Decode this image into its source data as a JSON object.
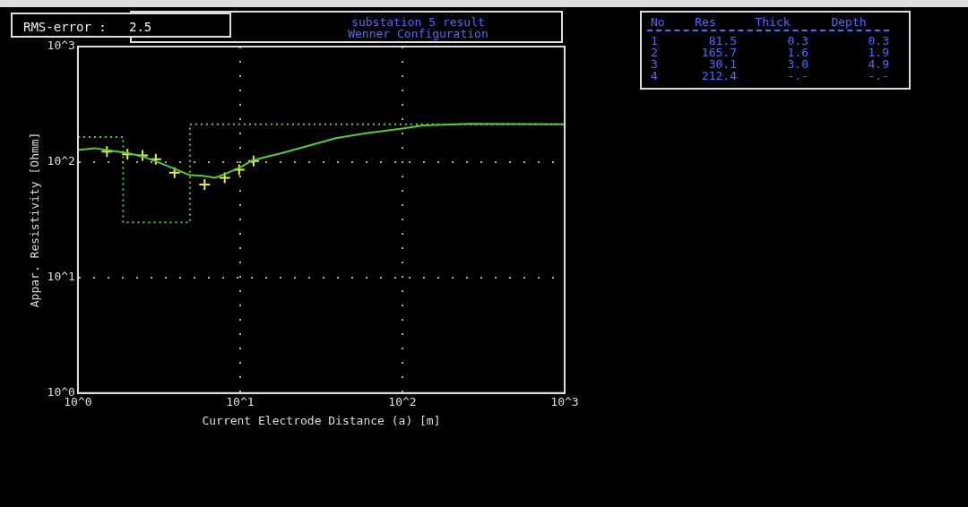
{
  "chart_data": {
    "type": "line",
    "title": "substation 5 result",
    "subtitle": "Wenner Configuration",
    "xlabel": "Current Electrode Distance (a) [m]",
    "ylabel": "Appar. Resistivity [Ohmm]",
    "annotations": [
      "RMS-error :   2.5",
      "No Res Thick Depth",
      "1 81.5 0.3 0.3",
      "2 165.7 1.6 1.9",
      "3 30.1 3.0 4.9",
      "4 212.4 -.- -.-"
    ],
    "log": "xy",
    "grid": true,
    "xlim": [
      1,
      1000
    ],
    "xticks": [
      {
        "value": 1,
        "label": "10^0"
      },
      {
        "value": 10,
        "label": "10^1"
      },
      {
        "value": 100,
        "label": "10^2"
      },
      {
        "value": 1000,
        "label": "10^3"
      }
    ],
    "ylim": [
      1,
      1000
    ],
    "yticks": [
      {
        "value": 1,
        "label": "10^0"
      },
      {
        "value": 10,
        "label": "10^1"
      },
      {
        "value": 100,
        "label": "10^2"
      },
      {
        "value": 1000,
        "label": "10^3"
      }
    ],
    "series": [
      {
        "type": "step",
        "color": "#55cc33",
        "line_style": "dotted",
        "marker": "none",
        "x": [
          1,
          1.9,
          4.9,
          1000
        ],
        "values": [
          165,
          30,
          212,
          212
        ]
      },
      {
        "color": "#55cc33",
        "line_style": "solid",
        "marker": "none",
        "x": [
          1,
          1.27,
          1.51,
          2.0,
          2.5,
          3.0,
          3.9,
          4.9,
          5.9,
          7.0,
          8.1,
          10,
          12,
          18.2,
          29.2,
          38.8,
          59.6,
          100,
          134,
          258,
          1000
        ],
        "values": [
          127,
          132,
          127,
          120,
          112,
          102,
          88,
          77,
          76,
          73,
          79,
          90,
          104,
          120,
          144,
          161,
          178,
          195,
          208,
          214,
          212
        ]
      },
      {
        "type": "scatter",
        "color": "#e8e84a",
        "marker": "cross",
        "x": [
          1.51,
          2.02,
          2.5,
          3.02,
          3.94,
          6.04,
          8.03,
          9.86,
          12.1
        ],
        "values": [
          123,
          117,
          114,
          106,
          81,
          64,
          73,
          86,
          102
        ]
      }
    ]
  }
}
